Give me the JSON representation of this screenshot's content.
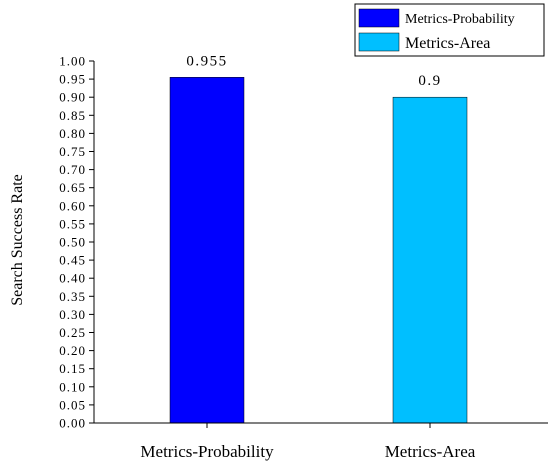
{
  "chart_data": {
    "type": "bar",
    "categories": [
      "Metrics-Probability",
      "Metrics-Area"
    ],
    "values": [
      0.955,
      0.9
    ],
    "data_labels": [
      "0.955",
      "0.9"
    ],
    "colors": [
      "#0000ff",
      "#00bfff"
    ],
    "title": "",
    "xlabel": "",
    "ylabel": "Search Success Rate",
    "ylim": [
      0,
      1.0
    ],
    "y_ticks": [
      "0.00",
      "0.05",
      "0.10",
      "0.15",
      "0.20",
      "0.25",
      "0.30",
      "0.35",
      "0.40",
      "0.45",
      "0.50",
      "0.55",
      "0.60",
      "0.65",
      "0.70",
      "0.75",
      "0.80",
      "0.85",
      "0.90",
      "0.95",
      "1.00"
    ],
    "grid": false,
    "legend": {
      "position": "top-right",
      "entries": [
        "Metrics-Probability",
        "Metrics-Area"
      ]
    }
  }
}
